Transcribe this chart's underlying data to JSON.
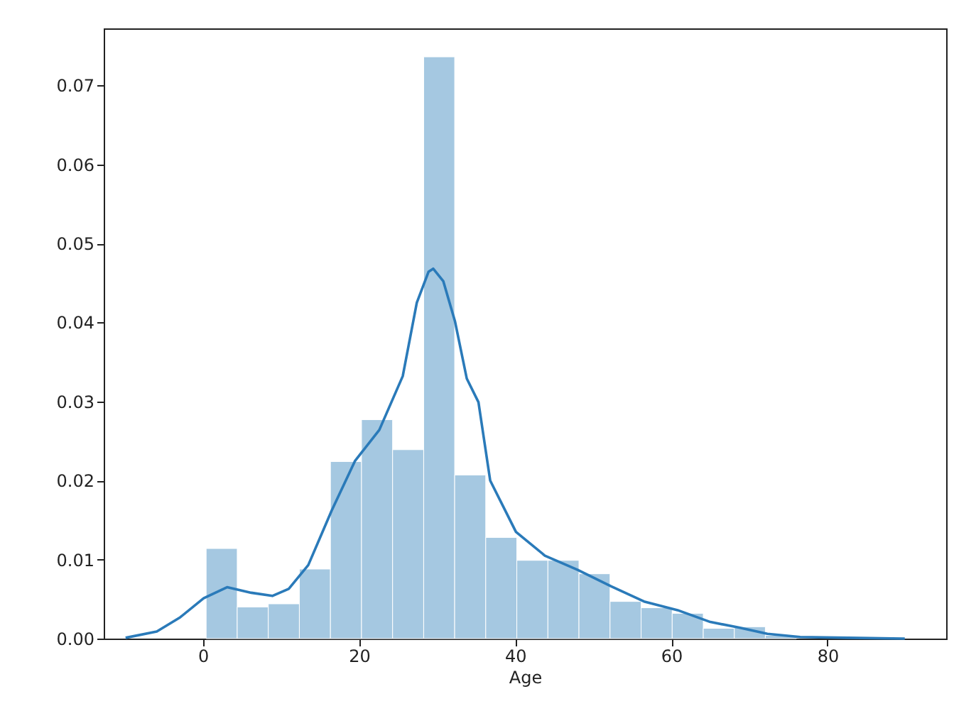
{
  "chart_data": {
    "type": "histogram",
    "xlabel": "Age",
    "bins": [
      0.42,
      4.4,
      8.38,
      12.36,
      16.34,
      20.32,
      24.3,
      28.28,
      32.25,
      36.23,
      40.21,
      44.19,
      48.17,
      52.15,
      56.13,
      60.11,
      64.09,
      68.07,
      72.04,
      76.02,
      80.0
    ],
    "series": [
      {
        "color": "#a5c8e1",
        "values": [
          0.0114,
          0.004,
          0.0044,
          0.0088,
          0.0224,
          0.0277,
          0.0239,
          0.0736,
          0.0207,
          0.0128,
          0.0099,
          0.0099,
          0.0082,
          0.0047,
          0.0039,
          0.0032,
          0.0013,
          0.0015,
          0.0004,
          null
        ]
      },
      {
        "type": "line",
        "color": "#2a7ab9",
        "x": [
          -9.9,
          -5.9,
          -2.9,
          0.1,
          3.1,
          6.2,
          8.9,
          11.0,
          13.5,
          16.5,
          19.5,
          22.6,
          25.6,
          27.4,
          28.9,
          29.5,
          30.8,
          32.3,
          33.8,
          35.3,
          36.8,
          40.1,
          43.8,
          48.0,
          52.3,
          56.5,
          60.8,
          65.0,
          68.7,
          72.3,
          76.5,
          82.6,
          89.9
        ],
        "values": [
          0.0001,
          0.0009,
          0.0027,
          0.0051,
          0.0065,
          0.0058,
          0.0054,
          0.0063,
          0.0093,
          0.0162,
          0.0225,
          0.0264,
          0.0332,
          0.0425,
          0.0464,
          0.0468,
          0.0452,
          0.0401,
          0.0329,
          0.0299,
          0.02,
          0.0135,
          0.0105,
          0.0087,
          0.0066,
          0.0047,
          0.0036,
          0.0021,
          0.0014,
          0.0006,
          0.0002,
          0.0001,
          0.0
        ]
      }
    ],
    "xlim": [
      -12.7,
      95.2
    ],
    "xticks": [
      0,
      20,
      40,
      60,
      80
    ],
    "ylim": [
      0,
      0.0772
    ],
    "yticks": [
      {
        "value": 0,
        "label": "0.00"
      },
      0.01,
      0.02,
      0.03,
      0.04,
      0.05,
      0.06,
      0.07
    ],
    "grid": false,
    "marker": "none",
    "line_style": "solid"
  }
}
